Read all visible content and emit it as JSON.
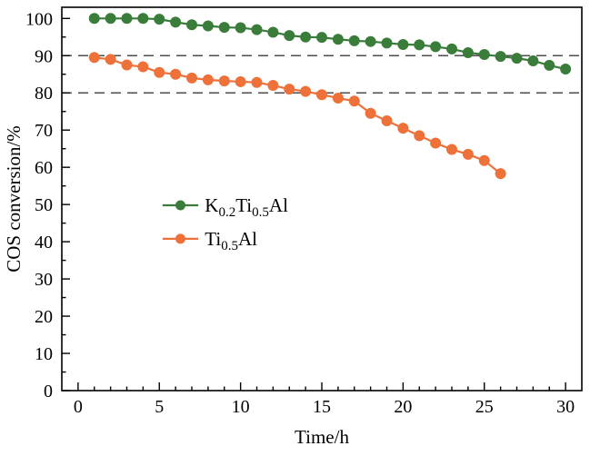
{
  "figure": {
    "background": "#ffffff",
    "frame_color": "#000000",
    "text_color": "#000000"
  },
  "chart_data": {
    "type": "line",
    "title": "",
    "xlabel": "Time/h",
    "ylabel": "COS conversion/%",
    "xlim": [
      -1,
      31
    ],
    "ylim": [
      0,
      103
    ],
    "x_major_ticks": [
      0,
      5,
      10,
      15,
      20,
      25,
      30
    ],
    "x_minor_step": 1,
    "y_major_ticks": [
      0,
      10,
      20,
      30,
      40,
      50,
      60,
      70,
      80,
      90,
      100
    ],
    "y_minor_step": 5,
    "grid": false,
    "reference_lines": [
      {
        "y": 90,
        "style": "dashed",
        "color": "#4d4d4d"
      },
      {
        "y": 80,
        "style": "dashed",
        "color": "#4d4d4d"
      }
    ],
    "series": [
      {
        "name": "K_{0.2}Ti_{0.5}Al",
        "color": "#3a7d3a",
        "marker": "circle",
        "x": [
          1,
          2,
          3,
          4,
          5,
          6,
          7,
          8,
          9,
          10,
          11,
          12,
          13,
          14,
          15,
          16,
          17,
          18,
          19,
          20,
          21,
          22,
          23,
          24,
          25,
          26,
          27,
          28,
          29,
          30
        ],
        "y": [
          100,
          100,
          100,
          100,
          99.8,
          99,
          98.3,
          98,
          97.6,
          97.5,
          97,
          96.3,
          95.4,
          95,
          94.9,
          94.4,
          94,
          93.8,
          93.4,
          93,
          92.9,
          92.4,
          91.8,
          90.8,
          90.3,
          89.8,
          89.3,
          88.6,
          87.4,
          86.4
        ]
      },
      {
        "name": "Ti_{0.5}Al",
        "color": "#ed7139",
        "marker": "circle",
        "x": [
          1,
          2,
          3,
          4,
          5,
          6,
          7,
          8,
          9,
          10,
          11,
          12,
          13,
          14,
          15,
          16,
          17,
          18,
          19,
          20,
          21,
          22,
          23,
          24,
          25,
          26
        ],
        "y": [
          89.5,
          89,
          87.5,
          87,
          85.5,
          85,
          84,
          83.5,
          83.2,
          83,
          82.8,
          82,
          81,
          80.4,
          79.5,
          78.6,
          77.8,
          74.5,
          72.5,
          70.5,
          68.5,
          66.5,
          64.8,
          63.5,
          61.8,
          58.3
        ]
      }
    ],
    "legend": {
      "position": "inside-left-middle",
      "x_line_start": 5.2,
      "x_line_end": 7.4,
      "x_text": 7.8,
      "entries_y": [
        49.8,
        40.8
      ]
    },
    "style": {
      "line_width": 2.2,
      "marker_radius": 5.5,
      "tick_font_size": 20,
      "label_font_size": 21,
      "legend_font_size": 21
    }
  }
}
